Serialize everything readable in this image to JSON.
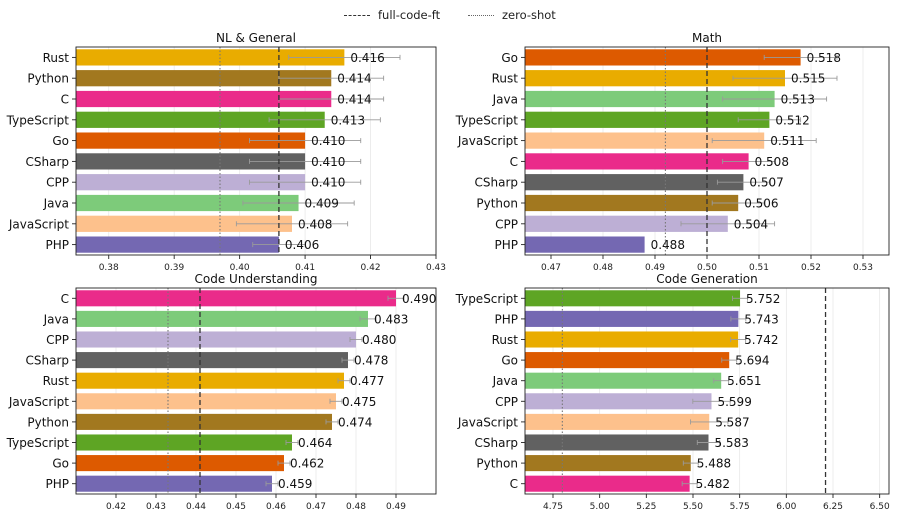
{
  "legend": {
    "full_code_ft": "full-code-ft",
    "zero_shot": "zero-shot"
  },
  "colors": {
    "Rust": "#e9ac00",
    "Python": "#a2781f",
    "C": "#ea2b8a",
    "TypeScript": "#5ea524",
    "Go": "#dd5a00",
    "CSharp": "#616161",
    "CPP": "#bdafd5",
    "Java": "#7dcb7a",
    "JavaScript": "#fdc18c",
    "PHP": "#7468b2"
  },
  "chart_data": [
    {
      "type": "bar",
      "orientation": "horizontal",
      "title": "NL & General",
      "categories": [
        "Rust",
        "Python",
        "C",
        "TypeScript",
        "Go",
        "CSharp",
        "CPP",
        "Java",
        "JavaScript",
        "PHP"
      ],
      "values": [
        0.416,
        0.414,
        0.414,
        0.413,
        0.41,
        0.41,
        0.41,
        0.409,
        0.408,
        0.406
      ],
      "labels": [
        "0.416",
        "0.414",
        "0.414",
        "0.413",
        "0.410",
        "0.410",
        "0.410",
        "0.409",
        "0.408",
        "0.406"
      ],
      "errors": [
        0.0085,
        0.008,
        0.008,
        0.0085,
        0.0085,
        0.0085,
        0.0085,
        0.0085,
        0.0085,
        0.004
      ],
      "xlim": [
        0.375,
        0.43
      ],
      "xticks": [
        0.38,
        0.39,
        0.4,
        0.41,
        0.42,
        0.43
      ],
      "xtick_labels": [
        "0.38",
        "0.39",
        "0.40",
        "0.41",
        "0.42",
        "0.43"
      ],
      "ref_full_code_ft": 0.406,
      "ref_zero_shot": 0.397
    },
    {
      "type": "bar",
      "orientation": "horizontal",
      "title": "Math",
      "categories": [
        "Go",
        "Rust",
        "Java",
        "TypeScript",
        "JavaScript",
        "C",
        "CSharp",
        "Python",
        "CPP",
        "PHP"
      ],
      "values": [
        0.518,
        0.515,
        0.513,
        0.512,
        0.511,
        0.508,
        0.507,
        0.506,
        0.504,
        0.488
      ],
      "labels": [
        "0.518",
        "0.515",
        "0.513",
        "0.512",
        "0.511",
        "0.508",
        "0.507",
        "0.506",
        "0.504",
        "0.488"
      ],
      "errors": [
        0.007,
        0.01,
        0.01,
        0.006,
        0.01,
        0.005,
        0.005,
        0.005,
        0.009,
        0.0
      ],
      "xlim": [
        0.465,
        0.535
      ],
      "xticks": [
        0.47,
        0.48,
        0.49,
        0.5,
        0.51,
        0.52,
        0.53
      ],
      "xtick_labels": [
        "0.47",
        "0.48",
        "0.49",
        "0.50",
        "0.51",
        "0.52",
        "0.53"
      ],
      "ref_full_code_ft": 0.5,
      "ref_zero_shot": 0.492
    },
    {
      "type": "bar",
      "orientation": "horizontal",
      "title": "Code Understanding",
      "categories": [
        "C",
        "Java",
        "CPP",
        "CSharp",
        "Rust",
        "JavaScript",
        "Python",
        "TypeScript",
        "Go",
        "PHP"
      ],
      "values": [
        0.49,
        0.483,
        0.48,
        0.478,
        0.477,
        0.475,
        0.474,
        0.464,
        0.462,
        0.459
      ],
      "labels": [
        "0.490",
        "0.483",
        "0.480",
        "0.478",
        "0.477",
        "0.475",
        "0.474",
        "0.464",
        "0.462",
        "0.459"
      ],
      "errors": [
        0.002,
        0.002,
        0.0015,
        0.0015,
        0.0015,
        0.0015,
        0.0015,
        0.0015,
        0.0015,
        0.0015
      ],
      "xlim": [
        0.41,
        0.5
      ],
      "xticks": [
        0.42,
        0.43,
        0.44,
        0.45,
        0.46,
        0.47,
        0.48,
        0.49
      ],
      "xtick_labels": [
        "0.42",
        "0.43",
        "0.44",
        "0.45",
        "0.46",
        "0.47",
        "0.48",
        "0.49"
      ],
      "ref_full_code_ft": 0.441,
      "ref_zero_shot": 0.433
    },
    {
      "type": "bar",
      "orientation": "horizontal",
      "title": "Code Generation",
      "categories": [
        "TypeScript",
        "PHP",
        "Rust",
        "Go",
        "Java",
        "CPP",
        "JavaScript",
        "CSharp",
        "Python",
        "C"
      ],
      "values": [
        5.752,
        5.743,
        5.742,
        5.694,
        5.651,
        5.599,
        5.587,
        5.583,
        5.488,
        5.482
      ],
      "labels": [
        "5.752",
        "5.743",
        "5.742",
        "5.694",
        "5.651",
        "5.599",
        "5.587",
        "5.583",
        "5.488",
        "5.482"
      ],
      "errors": [
        0.04,
        0.04,
        0.04,
        0.04,
        0.04,
        0.1,
        0.1,
        0.06,
        0.04,
        0.04
      ],
      "xlim": [
        4.6,
        6.55
      ],
      "xticks": [
        4.75,
        5.0,
        5.25,
        5.5,
        5.75,
        6.0,
        6.25,
        6.5
      ],
      "xtick_labels": [
        "4.75",
        "5.00",
        "5.25",
        "5.50",
        "5.75",
        "6.00",
        "6.25",
        "6.50"
      ],
      "ref_full_code_ft": 6.21,
      "ref_zero_shot": 4.8
    }
  ]
}
